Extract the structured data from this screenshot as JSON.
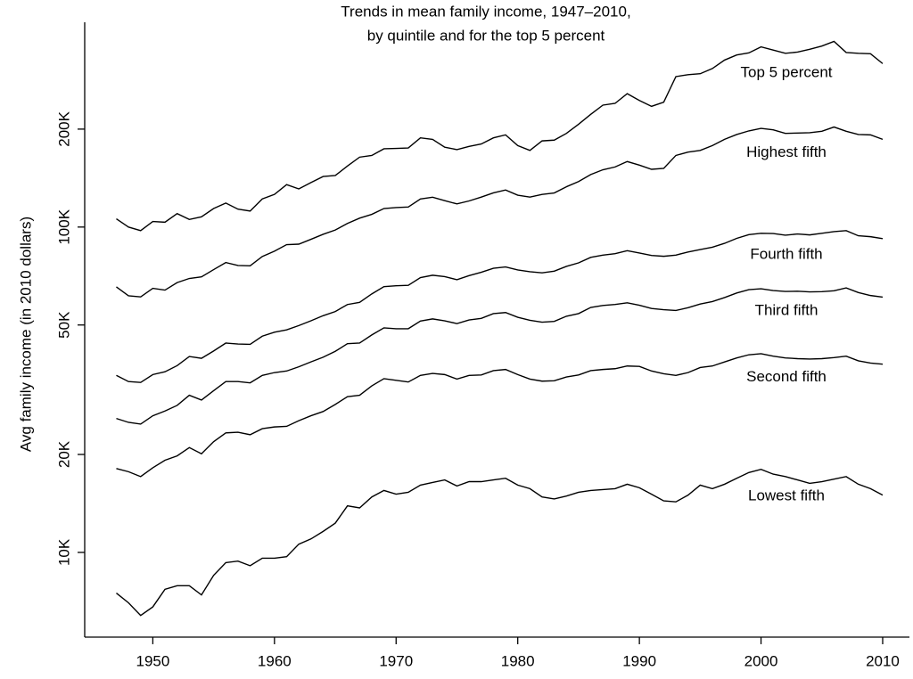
{
  "chart_data": {
    "type": "line",
    "title": "Trends in mean family income, 1947–2010,",
    "subtitle": "by quintile and for the top 5 percent",
    "y_label": "Avg family income (in 2010 dollars)",
    "y_scale": "log",
    "xlim": [
      1944.4,
      2012.2
    ],
    "ylim": [
      5490,
      426000
    ],
    "xticks": [
      1950,
      1960,
      1970,
      1980,
      1990,
      2000,
      2010
    ],
    "yticks": [
      {
        "value": 10000,
        "label": "10K"
      },
      {
        "value": 20000,
        "label": "20K"
      },
      {
        "value": 50000,
        "label": "50K"
      },
      {
        "value": 100000,
        "label": "100K"
      },
      {
        "value": 200000,
        "label": "200K"
      }
    ],
    "x": [
      1947,
      1948,
      1949,
      1950,
      1951,
      1952,
      1953,
      1954,
      1955,
      1956,
      1957,
      1958,
      1959,
      1960,
      1961,
      1962,
      1963,
      1964,
      1965,
      1966,
      1967,
      1968,
      1969,
      1970,
      1971,
      1972,
      1973,
      1974,
      1975,
      1976,
      1977,
      1978,
      1979,
      1980,
      1981,
      1982,
      1983,
      1984,
      1985,
      1986,
      1987,
      1988,
      1989,
      1990,
      1991,
      1992,
      1993,
      1994,
      1995,
      1996,
      1997,
      1998,
      1999,
      2000,
      2001,
      2002,
      2003,
      2004,
      2005,
      2006,
      2007,
      2008,
      2009,
      2010
    ],
    "series": [
      {
        "name": "Top 5 percent",
        "color": "#000000",
        "values": [
          106000,
          100000,
          97500,
          104000,
          103500,
          110000,
          105500,
          107500,
          114000,
          118500,
          113500,
          112000,
          122000,
          126000,
          135000,
          131000,
          137000,
          143000,
          144000,
          154000,
          164000,
          166000,
          174000,
          174500,
          175000,
          188000,
          186000,
          176000,
          173000,
          177000,
          180000,
          188000,
          192000,
          178000,
          172000,
          184000,
          185000,
          194000,
          207000,
          222000,
          237000,
          240000,
          257000,
          245000,
          235000,
          242000,
          290000,
          294000,
          296000,
          307000,
          326000,
          338000,
          343000,
          358000,
          350000,
          342000,
          345000,
          352000,
          360000,
          372000,
          344000,
          342000,
          341000,
          318000
        ]
      },
      {
        "name": "Highest fifth",
        "color": "#000000",
        "values": [
          65500,
          61500,
          61000,
          64800,
          64000,
          67500,
          69500,
          70300,
          74000,
          77800,
          76200,
          76000,
          81200,
          84300,
          88300,
          88600,
          91700,
          95000,
          97900,
          102600,
          106500,
          109400,
          114000,
          114800,
          115200,
          122000,
          123500,
          120500,
          117800,
          120300,
          123600,
          127400,
          130000,
          125300,
          123600,
          126000,
          127300,
          133000,
          138000,
          145000,
          150000,
          153000,
          159000,
          155000,
          150500,
          151500,
          166000,
          170000,
          172000,
          178000,
          186000,
          192500,
          197500,
          201000,
          199000,
          194000,
          194500,
          195000,
          197000,
          203000,
          197000,
          192500,
          192000,
          186000
        ]
      },
      {
        "name": "Fourth fifth",
        "color": "#000000",
        "values": [
          35000,
          33500,
          33300,
          35200,
          35900,
          37500,
          40000,
          39500,
          41600,
          44000,
          43700,
          43600,
          46200,
          47500,
          48300,
          49800,
          51500,
          53400,
          55000,
          57800,
          58700,
          62300,
          65600,
          66000,
          66200,
          69900,
          71100,
          70400,
          68900,
          70900,
          72600,
          74700,
          75400,
          73800,
          72900,
          72300,
          73200,
          75700,
          77600,
          80700,
          82000,
          82800,
          84600,
          83200,
          81800,
          81300,
          82000,
          83800,
          85300,
          86700,
          89100,
          92300,
          94800,
          95700,
          95500,
          94400,
          95200,
          94600,
          95700,
          96800,
          97500,
          94000,
          93400,
          92100
        ]
      },
      {
        "name": "Third fifth",
        "color": "#000000",
        "values": [
          25800,
          25100,
          24800,
          26300,
          27200,
          28300,
          30400,
          29400,
          31400,
          33500,
          33500,
          33200,
          35000,
          35700,
          36100,
          37200,
          38500,
          39800,
          41500,
          43800,
          44000,
          46600,
          49000,
          48700,
          48700,
          51400,
          52200,
          51500,
          50500,
          51800,
          52400,
          54200,
          54600,
          52800,
          51700,
          51000,
          51300,
          53200,
          54200,
          56600,
          57400,
          57800,
          58500,
          57500,
          56200,
          55700,
          55400,
          56500,
          58000,
          59000,
          60700,
          62700,
          64200,
          64600,
          63800,
          63400,
          63500,
          63200,
          63300,
          63700,
          65000,
          62900,
          61600,
          60900
        ]
      },
      {
        "name": "Second fifth",
        "color": "#000000",
        "values": [
          18100,
          17700,
          17100,
          18200,
          19200,
          19800,
          21000,
          20100,
          21900,
          23300,
          23400,
          23000,
          24000,
          24300,
          24400,
          25400,
          26300,
          27100,
          28500,
          30100,
          30400,
          32500,
          34200,
          33800,
          33400,
          35000,
          35500,
          35200,
          34100,
          35000,
          35100,
          36200,
          36500,
          35200,
          34100,
          33600,
          33700,
          34600,
          35100,
          36200,
          36500,
          36700,
          37400,
          37300,
          36100,
          35400,
          35000,
          35700,
          37000,
          37400,
          38500,
          39600,
          40500,
          40800,
          40100,
          39600,
          39400,
          39300,
          39400,
          39700,
          40100,
          38800,
          38200,
          37900
        ]
      },
      {
        "name": "Lowest fifth",
        "color": "#000000",
        "values": [
          7500,
          7000,
          6400,
          6800,
          7700,
          7900,
          7900,
          7400,
          8500,
          9300,
          9400,
          9100,
          9600,
          9600,
          9700,
          10600,
          11000,
          11600,
          12300,
          13900,
          13700,
          14800,
          15500,
          15100,
          15300,
          16100,
          16400,
          16700,
          16000,
          16500,
          16500,
          16700,
          16900,
          16100,
          15700,
          14800,
          14600,
          14900,
          15300,
          15500,
          15600,
          15700,
          16200,
          15800,
          15100,
          14400,
          14300,
          15000,
          16100,
          15700,
          16200,
          16900,
          17600,
          18000,
          17400,
          17100,
          16700,
          16300,
          16500,
          16800,
          17100,
          16200,
          15700,
          15000
        ]
      }
    ]
  }
}
